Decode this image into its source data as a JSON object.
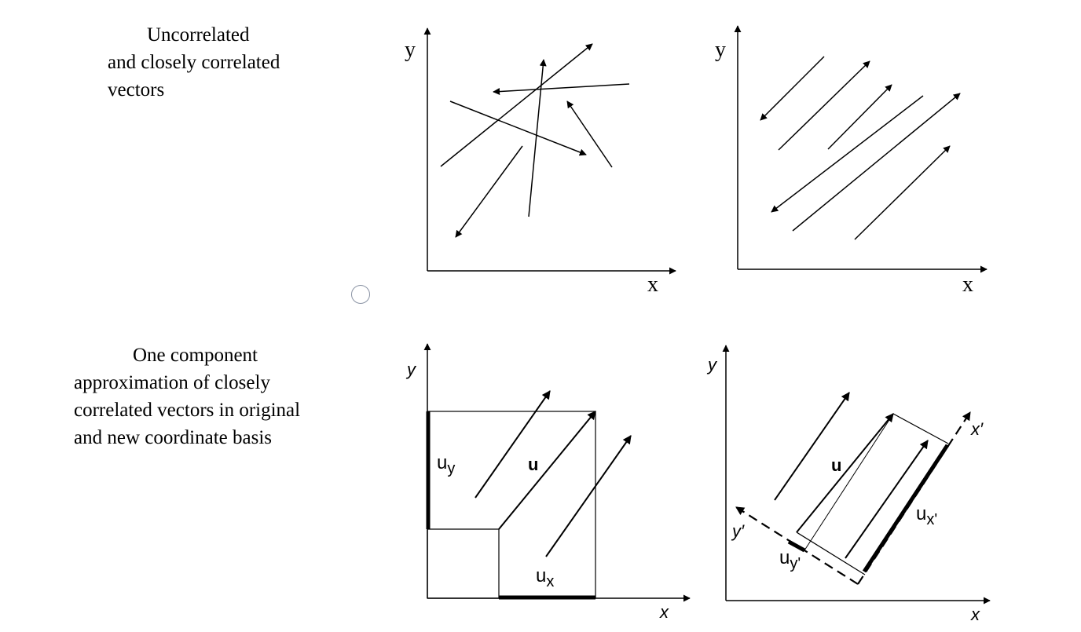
{
  "captions": {
    "top": "        Uncorrelated\nand closely correlated\nvectors",
    "bottom": "            One component\napproximation of closely\ncorrelated vectors in original\nand new coordinate basis"
  },
  "panels": {
    "uncorrelated": {
      "x_axis": "x",
      "y_axis": "y"
    },
    "correlated": {
      "x_axis": "x",
      "y_axis": "y"
    },
    "original_basis": {
      "x_axis": "x",
      "y_axis": "y",
      "u": "u",
      "ux": "u",
      "ux_sub": "x",
      "uy": "u",
      "uy_sub": "y"
    },
    "new_basis": {
      "x_axis": "x",
      "y_axis": "y",
      "x_prime": "x′",
      "y_prime": "y′",
      "u": "u",
      "ux": "u",
      "ux_sub": "x'",
      "uy": "u",
      "uy_sub": "y'"
    }
  },
  "colors": {
    "ink": "#000000",
    "radio_border": "#8a93a4"
  }
}
